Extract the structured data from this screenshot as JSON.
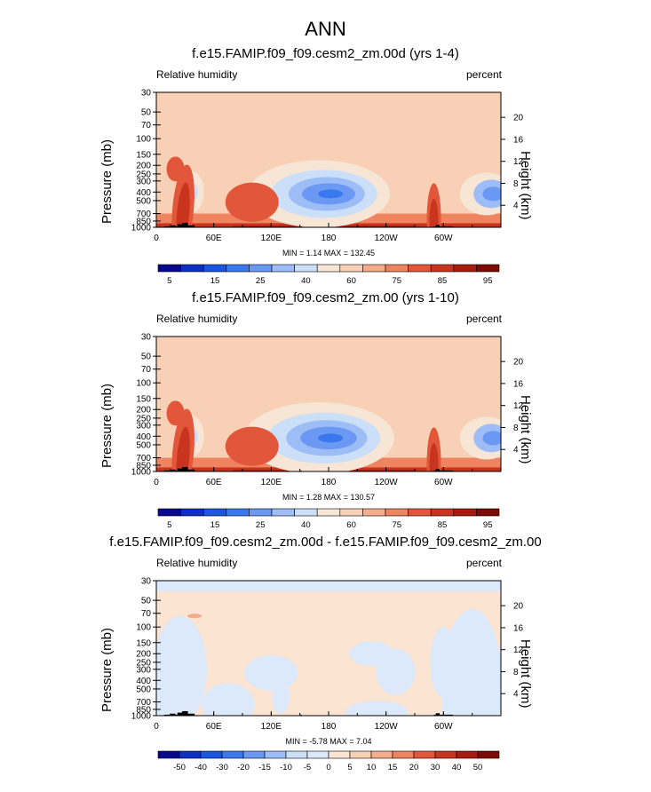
{
  "main_title": "ANN",
  "panels": [
    {
      "title": "f.e15.FAMIP.f09_f09.cesm2_zm.00d (yrs 1-4)",
      "variable_label": "Relative humidity",
      "unit_label": "percent",
      "ylabel_left": "Pressure (mb)",
      "ylabel_right": "Height (km)",
      "minmax_text": "MIN =   1.14  MAX = 132.45",
      "kind": "abs"
    },
    {
      "title": "f.e15.FAMIP.f09_f09.cesm2_zm.00 (yrs 1-10)",
      "variable_label": "Relative humidity",
      "unit_label": "percent",
      "ylabel_left": "Pressure (mb)",
      "ylabel_right": "Height (km)",
      "minmax_text": "MIN =   1.28  MAX = 130.57",
      "kind": "abs"
    },
    {
      "title": "f.e15.FAMIP.f09_f09.cesm2_zm.00d - f.e15.FAMIP.f09_f09.cesm2_zm.00",
      "variable_label": "Relative humidity",
      "unit_label": "percent",
      "ylabel_left": "Pressure (mb)",
      "ylabel_right": "Height (km)",
      "minmax_text": "MIN =  -5.78  MAX =   7.04",
      "kind": "diff"
    }
  ],
  "colors": {
    "abs_scale": [
      "#08088f",
      "#0d2fc4",
      "#1b55e0",
      "#3a78ee",
      "#6a98f2",
      "#9cbdf6",
      "#cbdff9",
      "#f7e6d6",
      "#f8d0b6",
      "#f4ac8a",
      "#ee8460",
      "#e2563a",
      "#c9341f",
      "#a81b0f",
      "#7e0b06"
    ],
    "diff_scale": [
      "#08088f",
      "#0d2fc4",
      "#1b55e0",
      "#3a78ee",
      "#6a98f2",
      "#9cbdf6",
      "#cbdff9",
      "#dbe9fa",
      "#fbe4d2",
      "#f8d0b6",
      "#f4ac8a",
      "#ee8460",
      "#e2563a",
      "#c9341f",
      "#a81b0f",
      "#7e0b06"
    ],
    "topography": "#000000"
  },
  "chart_data": [
    {
      "type": "heatmap",
      "title": "f.e15.FAMIP.f09_f09.cesm2_zm.00d (yrs 1-4)",
      "xlabel": "",
      "ylabel": "Pressure (mb)",
      "y2label": "Height (km)",
      "x_ticks": [
        "0",
        "60E",
        "120E",
        "180",
        "120W",
        "60W"
      ],
      "y_ticks": [
        "1000",
        "850",
        "700",
        "500",
        "400",
        "300",
        "250",
        "200",
        "150",
        "100",
        "70",
        "50",
        "30"
      ],
      "y2_ticks": [
        "4",
        "8",
        "12",
        "16",
        "20"
      ],
      "colorbar_levels": [
        5,
        10,
        15,
        20,
        25,
        30,
        40,
        50,
        60,
        70,
        75,
        80,
        85,
        90,
        95
      ],
      "colorbar_labels": [
        "5",
        "15",
        "25",
        "40",
        "60",
        "75",
        "85",
        "95"
      ],
      "min": 1.14,
      "max": 132.45
    },
    {
      "type": "heatmap",
      "title": "f.e15.FAMIP.f09_f09.cesm2_zm.00 (yrs 1-10)",
      "xlabel": "",
      "ylabel": "Pressure (mb)",
      "y2label": "Height (km)",
      "x_ticks": [
        "0",
        "60E",
        "120E",
        "180",
        "120W",
        "60W"
      ],
      "y_ticks": [
        "1000",
        "850",
        "700",
        "500",
        "400",
        "300",
        "250",
        "200",
        "150",
        "100",
        "70",
        "50",
        "30"
      ],
      "y2_ticks": [
        "4",
        "8",
        "12",
        "16",
        "20"
      ],
      "colorbar_levels": [
        5,
        10,
        15,
        20,
        25,
        30,
        40,
        50,
        60,
        70,
        75,
        80,
        85,
        90,
        95
      ],
      "colorbar_labels": [
        "5",
        "15",
        "25",
        "40",
        "60",
        "75",
        "85",
        "95"
      ],
      "min": 1.28,
      "max": 130.57
    },
    {
      "type": "heatmap",
      "title": "f.e15.FAMIP.f09_f09.cesm2_zm.00d - f.e15.FAMIP.f09_f09.cesm2_zm.00",
      "xlabel": "",
      "ylabel": "Pressure (mb)",
      "y2label": "Height (km)",
      "x_ticks": [
        "0",
        "60E",
        "120E",
        "180",
        "120W",
        "60W"
      ],
      "y_ticks": [
        "1000",
        "850",
        "700",
        "500",
        "400",
        "300",
        "250",
        "200",
        "150",
        "100",
        "70",
        "50",
        "30"
      ],
      "y2_ticks": [
        "4",
        "8",
        "12",
        "16",
        "20"
      ],
      "colorbar_levels": [
        -50,
        -40,
        -30,
        -20,
        -15,
        -10,
        -5,
        0,
        5,
        10,
        15,
        20,
        30,
        40,
        50
      ],
      "colorbar_labels": [
        "-50",
        "-40",
        "-30",
        "-20",
        "-15",
        "-10",
        "-5",
        "0",
        "5",
        "10",
        "15",
        "20",
        "30",
        "40",
        "50"
      ],
      "min": -5.78,
      "max": 7.04
    }
  ]
}
